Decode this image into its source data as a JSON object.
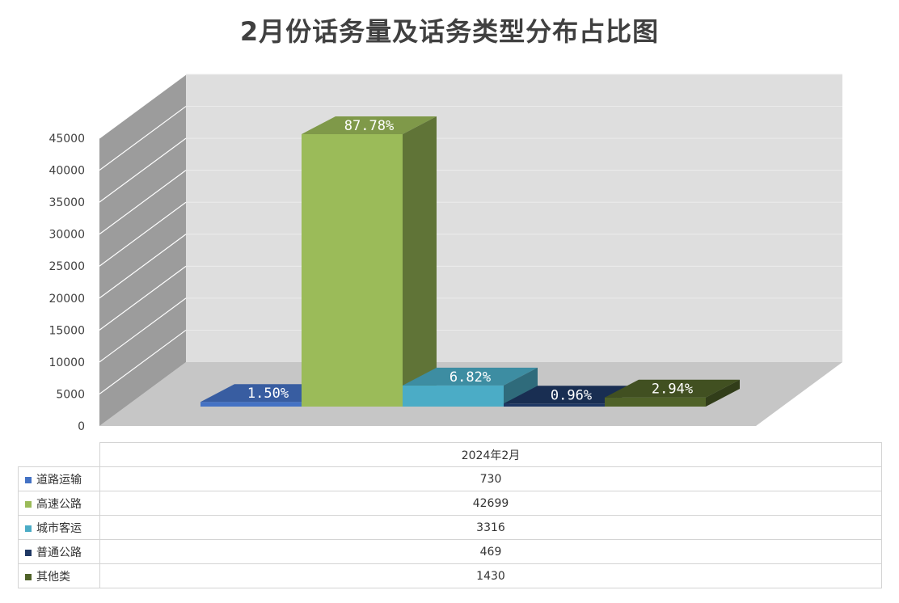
{
  "title": "2月份话务量及话务类型分布占比图",
  "chart_data": {
    "type": "bar",
    "categories": [
      "2024年2月"
    ],
    "series": [
      {
        "name": "道路运输",
        "values": [
          730
        ],
        "label": "1.50%",
        "color": "#4472c4"
      },
      {
        "name": "高速公路",
        "values": [
          42699
        ],
        "label": "87.78%",
        "color": "#9bbb59"
      },
      {
        "name": "城市客运",
        "values": [
          3316
        ],
        "label": "6.82%",
        "color": "#4bacc6"
      },
      {
        "name": "普通公路",
        "values": [
          469
        ],
        "label": "0.96%",
        "color": "#1f3864"
      },
      {
        "name": "其他类",
        "values": [
          1430
        ],
        "label": "2.94%",
        "color": "#4f6228"
      }
    ],
    "ylim": [
      0,
      45000
    ],
    "yticks": [
      "0",
      "5000",
      "10000",
      "15000",
      "20000",
      "25000",
      "30000",
      "35000",
      "40000",
      "45000"
    ],
    "grid": true,
    "legend": "data-table"
  },
  "table": {
    "header": "2024年2月",
    "rows": [
      {
        "label": "道路运输",
        "value": "730"
      },
      {
        "label": "高速公路",
        "value": "42699"
      },
      {
        "label": "城市客运",
        "value": "3316"
      },
      {
        "label": "普通公路",
        "value": "469"
      },
      {
        "label": "其他类",
        "value": "1430"
      }
    ]
  }
}
